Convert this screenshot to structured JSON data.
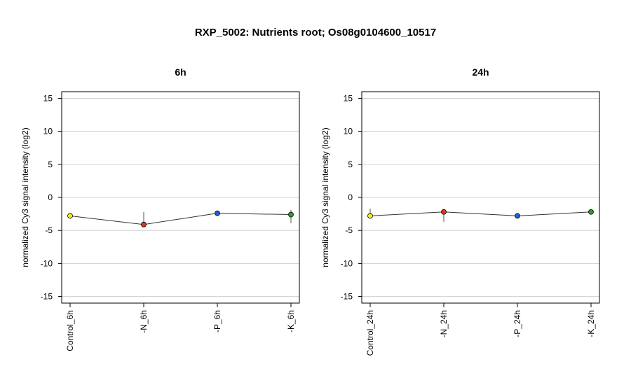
{
  "title": "RXP_5002: Nutrients root; Os08g0104600_10517",
  "ylabel": "normalized Cy3 signal intensity (log2)",
  "chart_data": [
    {
      "type": "line",
      "title": "6h",
      "ylabel": "normalized Cy3 signal intensity (log2)",
      "categories": [
        "Control_6h",
        "-N_6h",
        "-P_6h",
        "-K_6h"
      ],
      "values": [
        -2.8,
        -4.1,
        -2.4,
        -2.6
      ],
      "error_bars": [
        [
          -2.8,
          -2.8
        ],
        [
          -4.1,
          -2.2
        ],
        [
          -2.4,
          -2.4
        ],
        [
          -3.9,
          -1.9
        ]
      ],
      "point_colors": [
        "#f2f21a",
        "#e8321e",
        "#1f5fd6",
        "#2e9e2e"
      ],
      "ylim": [
        -16,
        16
      ],
      "yticks": [
        -15,
        -10,
        -5,
        0,
        5,
        10,
        15
      ],
      "grid": true
    },
    {
      "type": "line",
      "title": "24h",
      "ylabel": "normalized Cy3 signal intensity (log2)",
      "categories": [
        "Control_24h",
        "-N_24h",
        "-P_24h",
        "-K_24h"
      ],
      "values": [
        -2.8,
        -2.2,
        -2.8,
        -2.2
      ],
      "error_bars": [
        [
          -2.8,
          -1.7
        ],
        [
          -3.7,
          -2.2
        ],
        [
          -2.8,
          -2.8
        ],
        [
          -2.2,
          -2.2
        ]
      ],
      "point_colors": [
        "#f2f21a",
        "#e8321e",
        "#1f5fd6",
        "#2e9e2e"
      ],
      "ylim": [
        -16,
        16
      ],
      "yticks": [
        -15,
        -10,
        -5,
        0,
        5,
        10,
        15
      ],
      "grid": true
    }
  ]
}
